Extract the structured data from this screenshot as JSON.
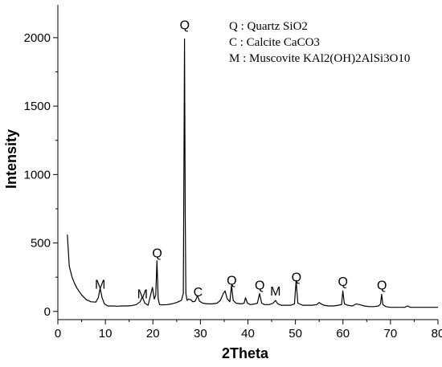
{
  "chart_data": {
    "type": "line",
    "xlabel": "2Theta",
    "ylabel": "Intensity",
    "xlim": [
      0,
      80
    ],
    "ylim": [
      -60,
      2240
    ],
    "xticks": [
      0,
      10,
      20,
      30,
      40,
      50,
      60,
      70,
      80
    ],
    "yticks": [
      0,
      500,
      1000,
      1500,
      2000
    ],
    "grid": false,
    "legend_placement": "top-right",
    "legend": [
      "Q : Quartz SiO2",
      "C : Calcite CaCO3",
      "M : Muscovite KAl2(OH)2AlSi3O10"
    ],
    "peak_labels": [
      {
        "label": "M",
        "x": 8.9,
        "y": 165
      },
      {
        "label": "M",
        "x": 17.8,
        "y": 95
      },
      {
        "label": "Q",
        "x": 20.9,
        "y": 395
      },
      {
        "label": "Q",
        "x": 26.7,
        "y": 2060
      },
      {
        "label": "C",
        "x": 29.5,
        "y": 110
      },
      {
        "label": "Q",
        "x": 36.6,
        "y": 195
      },
      {
        "label": "Q",
        "x": 42.5,
        "y": 160
      },
      {
        "label": "M",
        "x": 45.8,
        "y": 115
      },
      {
        "label": "Q",
        "x": 50.2,
        "y": 220
      },
      {
        "label": "Q",
        "x": 60.0,
        "y": 185
      },
      {
        "label": "Q",
        "x": 68.2,
        "y": 160
      }
    ],
    "series": [
      {
        "x": [
          2.0,
          2.4,
          3.0,
          3.5,
          4.0,
          5.0,
          6.0,
          7.0,
          8.0,
          8.5,
          8.9,
          9.3,
          9.8,
          10.5,
          11.5,
          12.5,
          13.5,
          14.5,
          15.5,
          16.5,
          17.3,
          17.8,
          18.3,
          19.0,
          19.9,
          20.3,
          20.6,
          20.85,
          21.1,
          21.4,
          22.0,
          23.0,
          24.0,
          25.0,
          26.0,
          26.4,
          26.55,
          26.65,
          26.8,
          26.95,
          27.2,
          27.5,
          28.0,
          28.4,
          28.9,
          29.4,
          29.8,
          30.5,
          31.5,
          32.5,
          33.5,
          34.2,
          34.8,
          35.2,
          35.6,
          36.2,
          36.55,
          36.9,
          37.5,
          38.5,
          39.2,
          39.5,
          39.9,
          40.5,
          41.5,
          42.0,
          42.45,
          42.9,
          43.5,
          44.5,
          45.3,
          45.8,
          46.3,
          47.0,
          48.0,
          49.0,
          49.8,
          50.15,
          50.5,
          51.5,
          52.5,
          53.5,
          54.5,
          55.0,
          55.4,
          56.0,
          57.0,
          58.0,
          59.0,
          59.7,
          59.97,
          60.3,
          61.0,
          62.0,
          62.8,
          63.5,
          64.5,
          65.5,
          66.5,
          67.5,
          67.9,
          68.15,
          68.4,
          69.0,
          70.0,
          71.0,
          72.0,
          73.0,
          73.6,
          74.2,
          75.0,
          76.0,
          77.0,
          78.0,
          79.0,
          80.0
        ],
        "values": [
          560,
          330,
          250,
          205,
          170,
          120,
          85,
          70,
          68,
          100,
          170,
          100,
          55,
          40,
          40,
          38,
          40,
          40,
          42,
          50,
          70,
          105,
          60,
          45,
          175,
          90,
          120,
          370,
          95,
          50,
          48,
          50,
          55,
          65,
          80,
          130,
          1200,
          1990,
          700,
          130,
          80,
          90,
          85,
          70,
          75,
          115,
          75,
          60,
          55,
          55,
          60,
          80,
          130,
          150,
          95,
          70,
          190,
          80,
          60,
          55,
          60,
          100,
          60,
          50,
          55,
          60,
          130,
          60,
          50,
          50,
          60,
          80,
          55,
          45,
          45,
          45,
          55,
          225,
          60,
          45,
          45,
          45,
          50,
          65,
          55,
          45,
          40,
          40,
          45,
          50,
          150,
          55,
          45,
          40,
          55,
          50,
          40,
          35,
          35,
          40,
          55,
          125,
          50,
          35,
          30,
          30,
          30,
          30,
          40,
          30,
          30,
          30,
          30,
          30,
          30,
          30
        ]
      }
    ]
  }
}
